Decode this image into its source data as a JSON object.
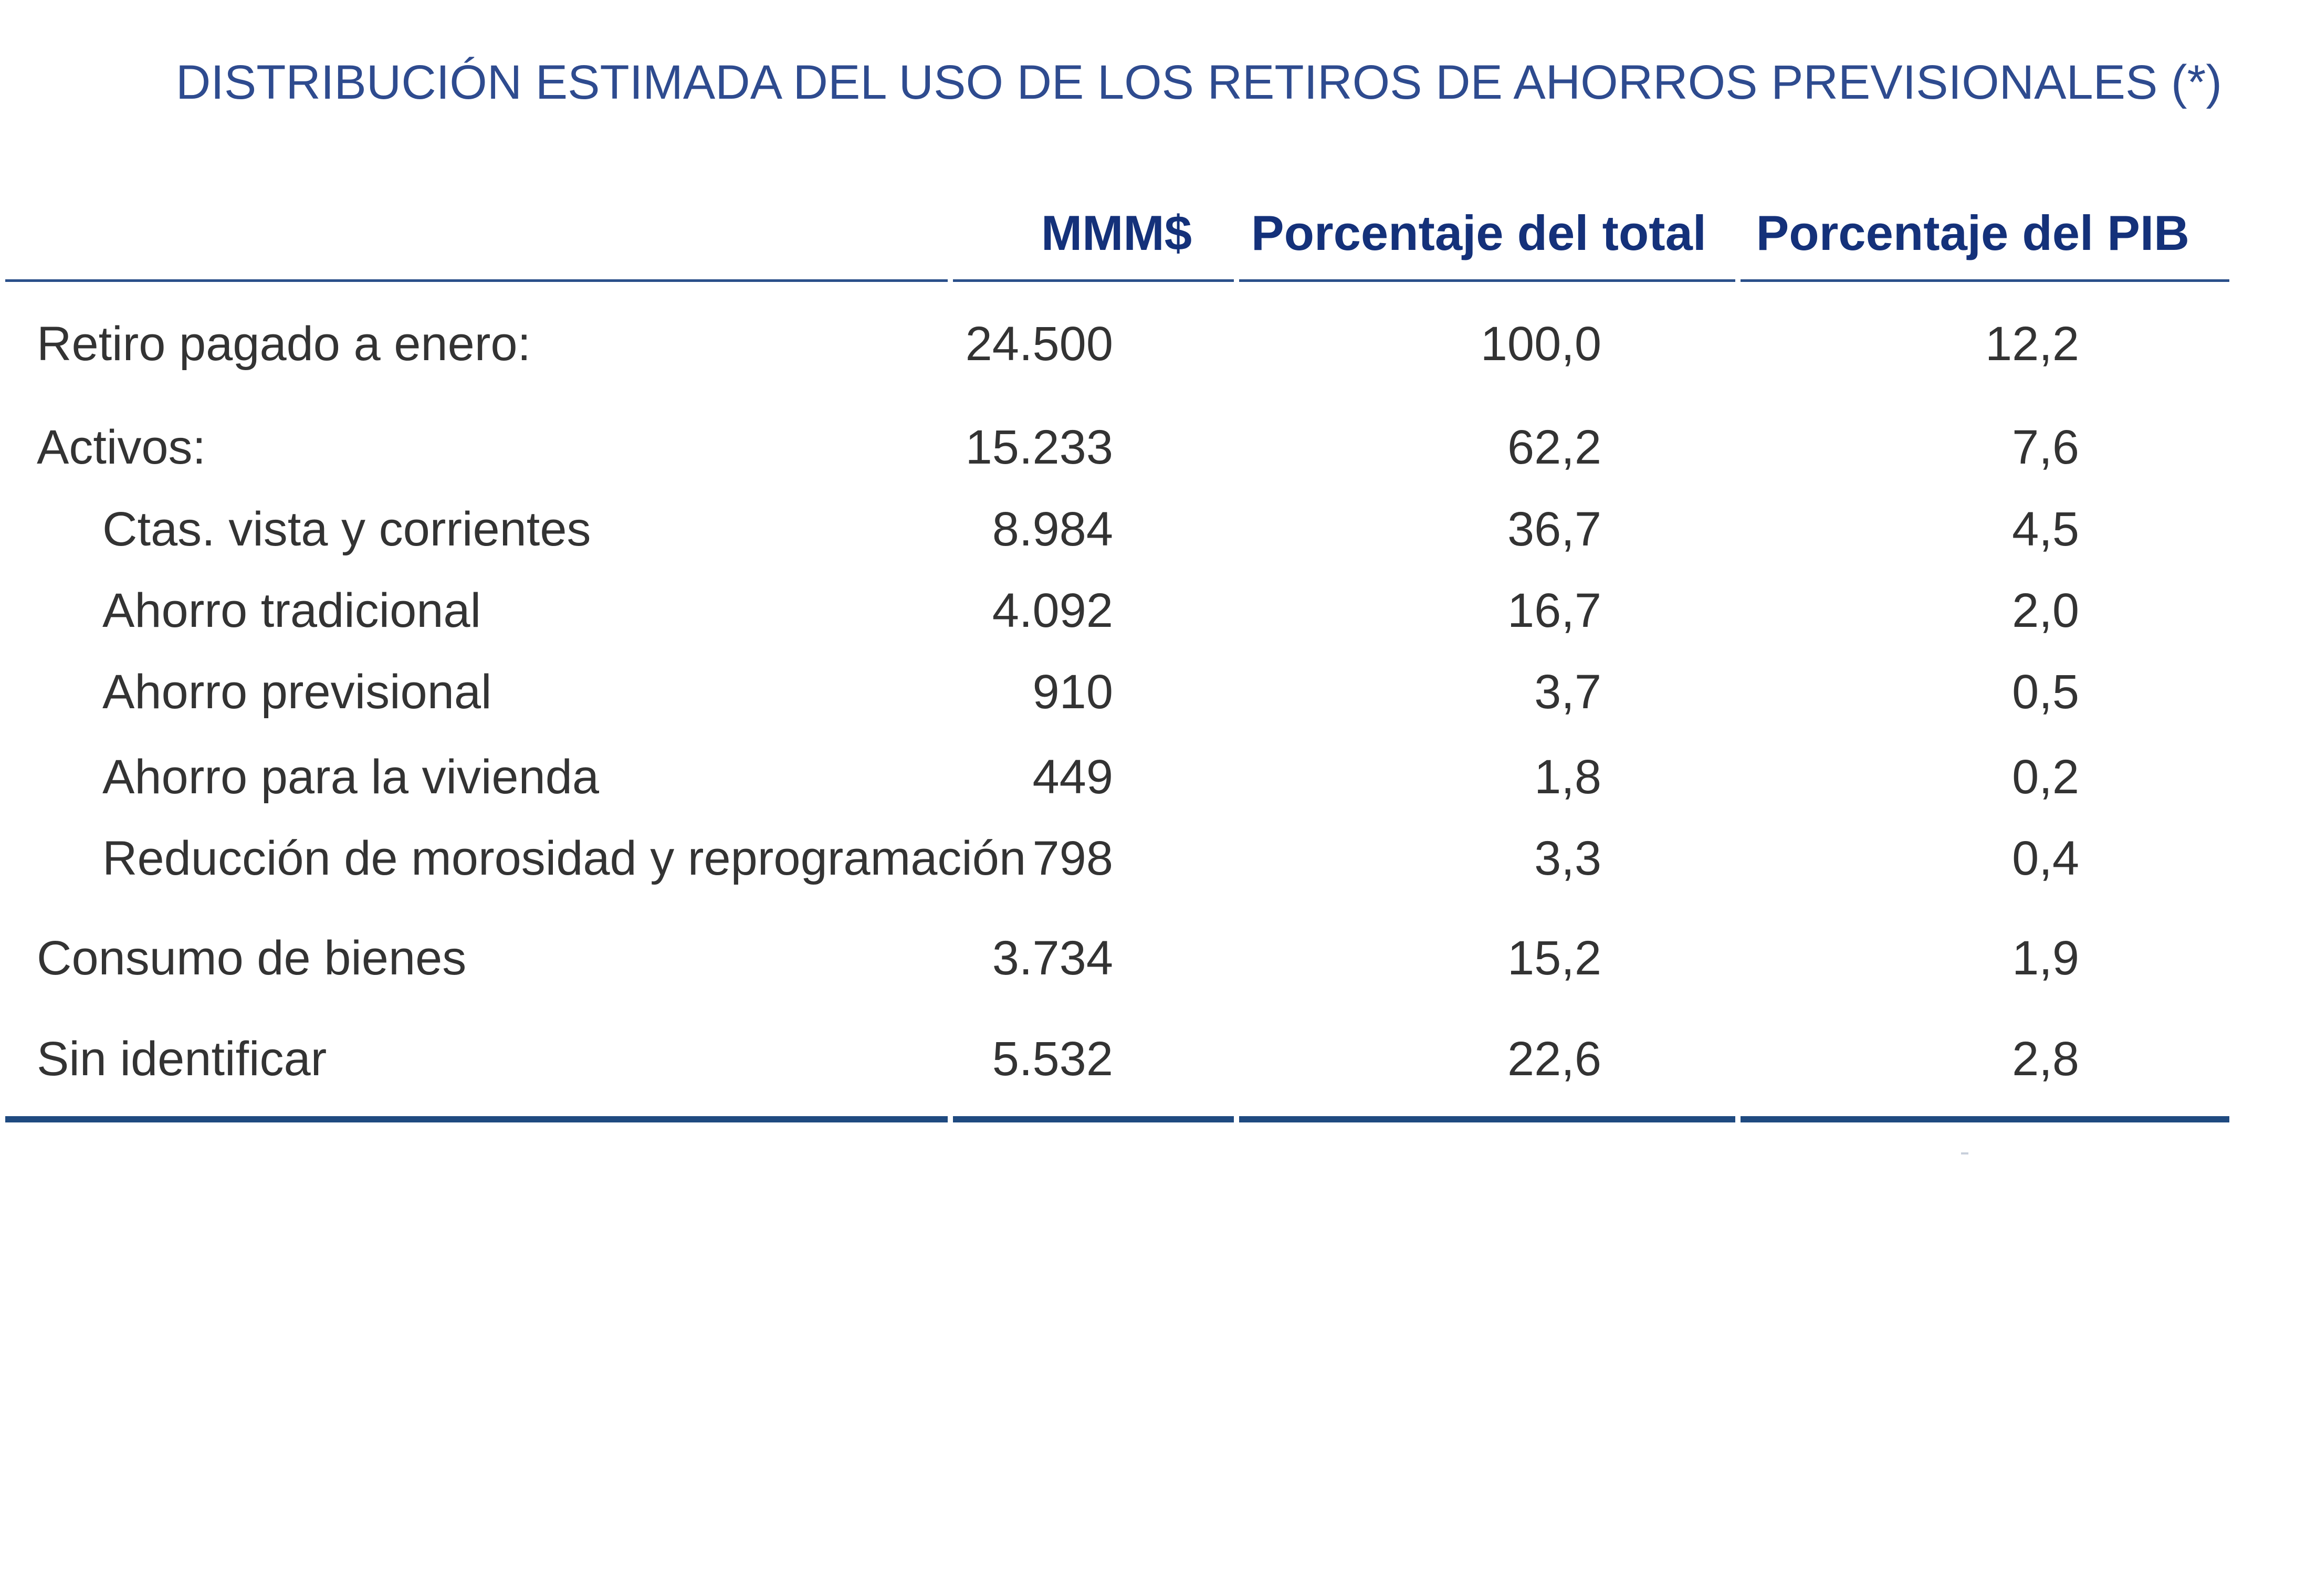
{
  "title": "DISTRIBUCIÓN ESTIMADA DEL USO DE LOS RETIROS DE AHORROS PREVISIONALES (*)",
  "table": {
    "headers": [
      "MMM$",
      "Porcentaje del total",
      "Porcentaje del PIB"
    ],
    "rows": [
      {
        "label": "Retiro pagado a enero:",
        "mmm": "24.500",
        "pct_total": "100,0",
        "pct_pib": "12,2",
        "indent": false
      },
      {
        "label": "Activos:",
        "mmm": "15.233",
        "pct_total": "62,2",
        "pct_pib": "7,6",
        "indent": false
      },
      {
        "label": "Ctas. vista y corrientes",
        "mmm": "8.984",
        "pct_total": "36,7",
        "pct_pib": "4,5",
        "indent": true
      },
      {
        "label": "Ahorro tradicional",
        "mmm": "4.092",
        "pct_total": "16,7",
        "pct_pib": "2,0",
        "indent": true
      },
      {
        "label": "Ahorro previsional",
        "mmm": "910",
        "pct_total": "3,7",
        "pct_pib": "0,5",
        "indent": true
      },
      {
        "label": "Ahorro para la vivienda",
        "mmm": "449",
        "pct_total": "1,8",
        "pct_pib": "0,2",
        "indent": true
      },
      {
        "label": "Reducción de morosidad y reprogramación",
        "mmm": "798",
        "pct_total": "3,3",
        "pct_pib": "0,4",
        "indent": true
      },
      {
        "label": "Consumo de bienes",
        "mmm": "3.734",
        "pct_total": "15,2",
        "pct_pib": "1,9",
        "indent": false
      },
      {
        "label": "Sin identificar",
        "mmm": "5.532",
        "pct_total": "22,6",
        "pct_pib": "2,8",
        "indent": false
      }
    ]
  },
  "colors": {
    "title": "#2e4b8f",
    "header": "#14317a",
    "rule": "#1f4a80",
    "body_text": "#333333"
  }
}
